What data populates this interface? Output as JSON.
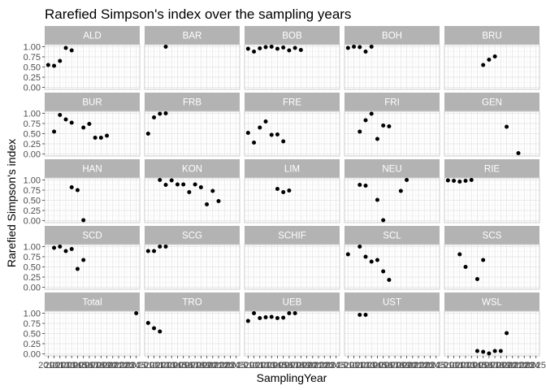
{
  "chart_data": {
    "type": "scatter",
    "facet": "wrap",
    "title": "Rarefied Simpson's index over the sampling years",
    "xlabel": "SamplingYear",
    "ylabel": "Rarefied Simpson's index",
    "xlim": [
      2010,
      2025
    ],
    "ylim": [
      0,
      1
    ],
    "ybreaks": [
      0.0,
      0.25,
      0.5,
      0.75,
      1.0
    ],
    "ytick_labels": [
      "0.00",
      "0.25",
      "0.50",
      "0.75",
      "1.00"
    ],
    "xbreaks": [
      2010,
      2011,
      2012,
      2013,
      2014,
      2015,
      2016,
      2017,
      2018,
      2019,
      2020,
      2021,
      2022,
      2023,
      2024,
      2025
    ],
    "xtick_labels": [
      "2010",
      "2011",
      "2012",
      "2013",
      "2014",
      "2015",
      "2016",
      "2017",
      "2018",
      "2019",
      "2020",
      "2021",
      "2022",
      "2023",
      "2024",
      "2025"
    ],
    "grid": true,
    "point_color": "#000000",
    "panels": [
      {
        "name": "ALD",
        "points": [
          [
            2010,
            0.55
          ],
          [
            2011,
            0.53
          ],
          [
            2012,
            0.65
          ],
          [
            2013,
            0.97
          ],
          [
            2014,
            0.91
          ]
        ]
      },
      {
        "name": "BAR",
        "points": [
          [
            2013,
            1.0
          ]
        ]
      },
      {
        "name": "BOB",
        "points": [
          [
            2010,
            0.95
          ],
          [
            2011,
            0.88
          ],
          [
            2012,
            0.96
          ],
          [
            2013,
            0.99
          ],
          [
            2014,
            1.0
          ],
          [
            2015,
            0.95
          ],
          [
            2016,
            0.98
          ],
          [
            2017,
            0.91
          ],
          [
            2018,
            0.97
          ],
          [
            2019,
            0.92
          ]
        ]
      },
      {
        "name": "BOH",
        "points": [
          [
            2010,
            0.97
          ],
          [
            2011,
            1.0
          ],
          [
            2012,
            0.99
          ],
          [
            2013,
            0.88
          ],
          [
            2014,
            1.0
          ]
        ]
      },
      {
        "name": "BRU",
        "points": [
          [
            2016,
            0.55
          ],
          [
            2017,
            0.68
          ],
          [
            2018,
            0.76
          ]
        ]
      },
      {
        "name": "BUR",
        "points": [
          [
            2011,
            0.55
          ],
          [
            2012,
            0.96
          ],
          [
            2013,
            0.85
          ],
          [
            2014,
            0.77
          ],
          [
            2016,
            0.65
          ],
          [
            2017,
            0.74
          ],
          [
            2018,
            0.4
          ],
          [
            2019,
            0.4
          ],
          [
            2020,
            0.45
          ]
        ]
      },
      {
        "name": "FRB",
        "points": [
          [
            2010,
            0.5
          ],
          [
            2011,
            0.9
          ],
          [
            2012,
            0.99
          ],
          [
            2013,
            1.0
          ]
        ]
      },
      {
        "name": "FRE",
        "points": [
          [
            2010,
            0.52
          ],
          [
            2011,
            0.28
          ],
          [
            2012,
            0.65
          ],
          [
            2013,
            0.8
          ],
          [
            2014,
            0.47
          ],
          [
            2015,
            0.48
          ],
          [
            2016,
            0.31
          ]
        ]
      },
      {
        "name": "FRI",
        "points": [
          [
            2012,
            0.55
          ],
          [
            2013,
            0.83
          ],
          [
            2014,
            0.99
          ],
          [
            2015,
            0.37
          ],
          [
            2016,
            0.7
          ],
          [
            2017,
            0.68
          ]
        ]
      },
      {
        "name": "GEN",
        "points": [
          [
            2020,
            0.67
          ],
          [
            2022,
            0.02
          ]
        ]
      },
      {
        "name": "HAN",
        "points": [
          [
            2014,
            0.82
          ],
          [
            2015,
            0.75
          ],
          [
            2016,
            0.01
          ]
        ]
      },
      {
        "name": "KON",
        "points": [
          [
            2012,
            1.0
          ],
          [
            2013,
            0.88
          ],
          [
            2014,
            0.99
          ],
          [
            2015,
            0.89
          ],
          [
            2016,
            0.89
          ],
          [
            2017,
            0.7
          ],
          [
            2018,
            0.89
          ],
          [
            2019,
            0.82
          ],
          [
            2020,
            0.4
          ],
          [
            2021,
            0.73
          ],
          [
            2022,
            0.48
          ]
        ]
      },
      {
        "name": "LIM",
        "points": [
          [
            2015,
            0.78
          ],
          [
            2016,
            0.7
          ],
          [
            2017,
            0.74
          ]
        ]
      },
      {
        "name": "NEU",
        "points": [
          [
            2012,
            0.88
          ],
          [
            2013,
            0.86
          ],
          [
            2015,
            0.51
          ],
          [
            2016,
            0.01
          ],
          [
            2019,
            0.73
          ],
          [
            2020,
            1.0
          ]
        ]
      },
      {
        "name": "RIE",
        "points": [
          [
            2010,
            0.99
          ],
          [
            2011,
            0.98
          ],
          [
            2012,
            0.96
          ],
          [
            2013,
            0.98
          ],
          [
            2014,
            1.0
          ]
        ]
      },
      {
        "name": "SCD",
        "points": [
          [
            2011,
            0.97
          ],
          [
            2012,
            1.0
          ],
          [
            2013,
            0.89
          ],
          [
            2014,
            0.94
          ],
          [
            2015,
            0.45
          ],
          [
            2016,
            0.67
          ]
        ]
      },
      {
        "name": "SCG",
        "points": [
          [
            2010,
            0.89
          ],
          [
            2011,
            0.89
          ],
          [
            2012,
            1.0
          ],
          [
            2013,
            1.0
          ]
        ]
      },
      {
        "name": "SCHIF",
        "points": []
      },
      {
        "name": "SCL",
        "points": [
          [
            2010,
            0.81
          ],
          [
            2012,
            1.0
          ],
          [
            2013,
            0.75
          ],
          [
            2014,
            0.63
          ],
          [
            2015,
            0.67
          ],
          [
            2016,
            0.39
          ],
          [
            2017,
            0.18
          ]
        ]
      },
      {
        "name": "SCS",
        "points": [
          [
            2012,
            0.81
          ],
          [
            2013,
            0.5
          ],
          [
            2015,
            0.2
          ],
          [
            2016,
            0.67
          ]
        ]
      },
      {
        "name": "Total",
        "points": [
          [
            2025,
            1.0
          ]
        ]
      },
      {
        "name": "TRO",
        "points": [
          [
            2010,
            0.76
          ],
          [
            2011,
            0.63
          ],
          [
            2012,
            0.55
          ]
        ]
      },
      {
        "name": "UEB",
        "points": [
          [
            2010,
            0.81
          ],
          [
            2011,
            1.0
          ],
          [
            2012,
            0.88
          ],
          [
            2013,
            0.9
          ],
          [
            2014,
            0.91
          ],
          [
            2015,
            0.88
          ],
          [
            2016,
            0.89
          ],
          [
            2017,
            1.0
          ],
          [
            2018,
            1.0
          ]
        ]
      },
      {
        "name": "UST",
        "points": [
          [
            2012,
            0.96
          ],
          [
            2013,
            0.96
          ]
        ]
      },
      {
        "name": "WSL",
        "points": [
          [
            2015,
            0.07
          ],
          [
            2016,
            0.05
          ],
          [
            2017,
            0.01
          ],
          [
            2018,
            0.07
          ],
          [
            2019,
            0.07
          ],
          [
            2020,
            0.51
          ]
        ]
      }
    ]
  }
}
